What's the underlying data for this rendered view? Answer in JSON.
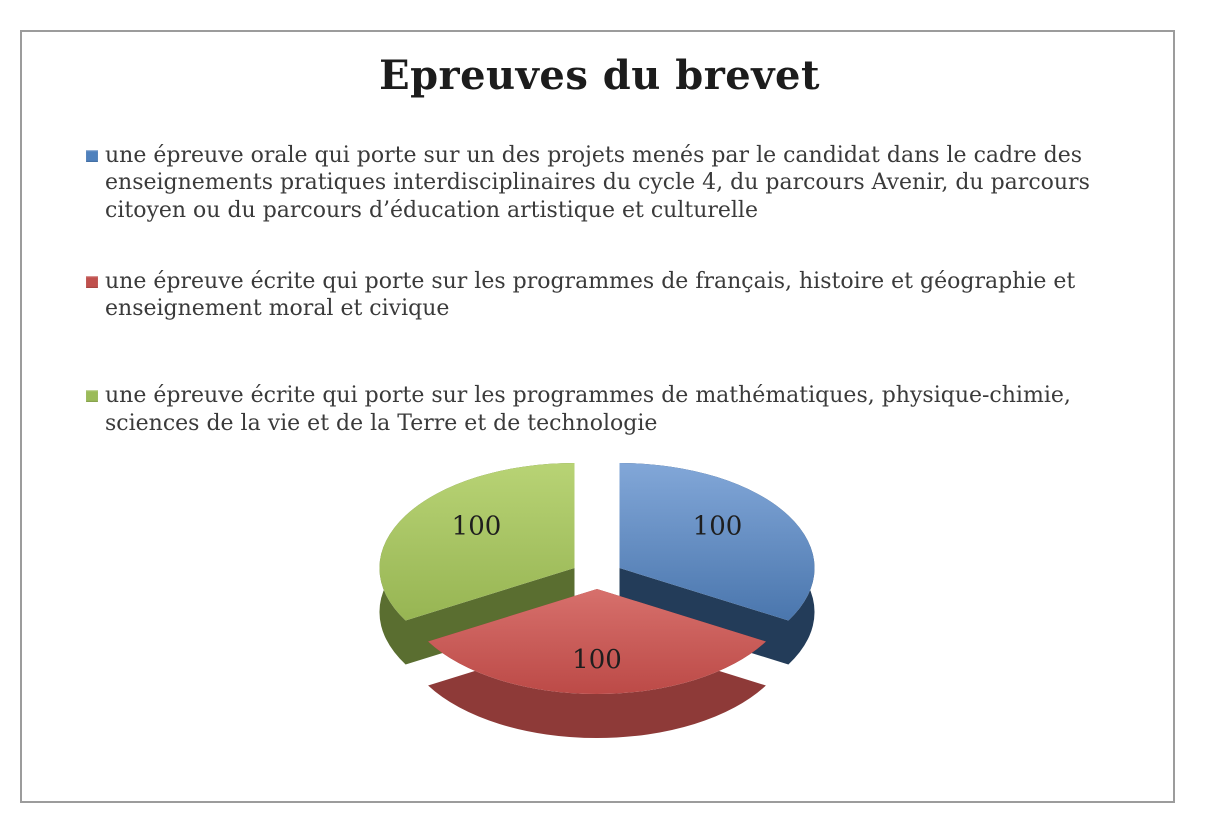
{
  "page": {
    "background_color": "#ffffff",
    "frame_border_color": "#9c9c9c"
  },
  "title": "Epreuves du brevet",
  "legend": {
    "position": "top-left",
    "items": [
      {
        "label": "une épreuve orale qui porte sur un des projets menés par le candidat dans le cadre des enseignements pratiques interdisciplinaires du cycle 4, du parcours Avenir, du parcours citoyen ou du parcours d’éducation artistique et culturelle",
        "color": "#4f81bd"
      },
      {
        "label": "une épreuve écrite qui porte sur les programmes de français, histoire et géographie et enseignement moral et civique",
        "color": "#c0504d"
      },
      {
        "label": "une épreuve écrite qui porte sur les programmes de mathématiques, physique-chimie, sciences de la vie et de la Terre et de technologie",
        "color": "#9bbb59"
      }
    ]
  },
  "chart_data": {
    "type": "pie",
    "style": "3d-exploded",
    "title": "Epreuves du brevet",
    "legend_position": "top-left",
    "start_angle_deg": 0,
    "direction": "clockwise",
    "data_label_color": "#1e1e1e",
    "slices": [
      {
        "label": "une épreuve orale qui porte sur un des projets menés par le candidat dans le cadre des enseignements pratiques interdisciplinaires du cycle 4, du parcours Avenir, du parcours citoyen ou du parcours d’éducation artistique et culturelle",
        "value": 100,
        "data_label": "100",
        "color": "#4f81bd",
        "color_light": "#82a7d8",
        "color_dark": "#4a76ad",
        "color_side": "#233c59"
      },
      {
        "label": "une épreuve écrite qui porte sur les programmes de français, histoire et géographie et enseignement moral et civique",
        "value": 100,
        "data_label": "100",
        "color": "#c0504d",
        "color_light": "#d7706c",
        "color_dark": "#bc4a47",
        "color_side": "#8e3a38"
      },
      {
        "label": "une épreuve écrite qui porte sur les programmes de mathématiques, physique-chimie, sciences de la vie et de la Terre et de technologie",
        "value": 100,
        "data_label": "100",
        "color": "#9bbb59",
        "color_light": "#b8d375",
        "color_dark": "#97b553",
        "color_side": "#5a6e30"
      }
    ]
  }
}
